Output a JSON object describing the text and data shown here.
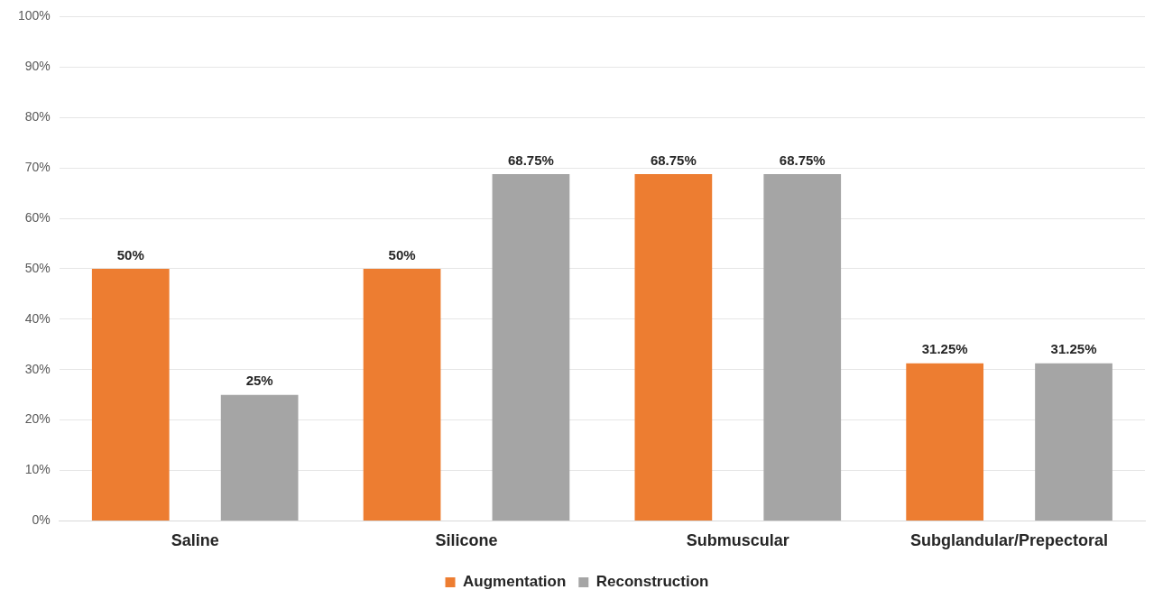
{
  "chart_data": {
    "type": "bar",
    "categories": [
      "Saline",
      "Silicone",
      "Submuscular",
      "Subglandular/Prepectoral"
    ],
    "series": [
      {
        "name": "Augmentation",
        "color": "#ed7d31",
        "values": [
          50,
          50,
          68.75,
          31.25
        ],
        "value_labels": [
          "50%",
          "50%",
          "68.75%",
          "31.25%"
        ]
      },
      {
        "name": "Reconstruction",
        "color": "#a5a5a5",
        "values": [
          25,
          68.75,
          68.75,
          31.25
        ],
        "value_labels": [
          "25%",
          "68.75%",
          "68.75%",
          "31.25%"
        ]
      }
    ],
    "ylim": [
      0,
      100
    ],
    "yticks": [
      {
        "value": 0,
        "label": "0%"
      },
      {
        "value": 10,
        "label": "10%"
      },
      {
        "value": 20,
        "label": "20%"
      },
      {
        "value": 30,
        "label": "30%"
      },
      {
        "value": 40,
        "label": "40%"
      },
      {
        "value": 50,
        "label": "50%"
      },
      {
        "value": 60,
        "label": "60%"
      },
      {
        "value": 70,
        "label": "70%"
      },
      {
        "value": 80,
        "label": "80%"
      },
      {
        "value": 90,
        "label": "90%"
      },
      {
        "value": 100,
        "label": "100%"
      }
    ],
    "grid": "y",
    "legend": "bottom"
  }
}
